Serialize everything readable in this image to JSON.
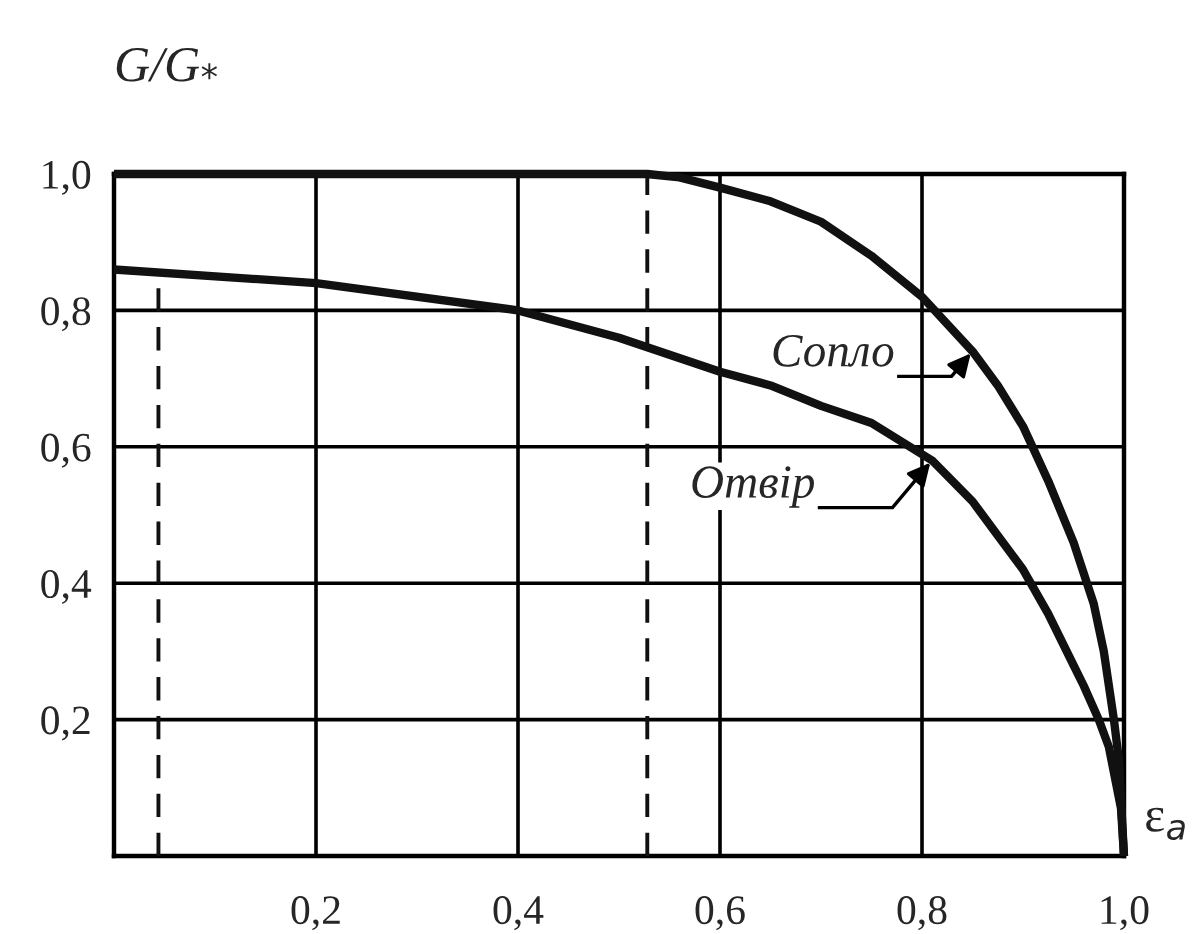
{
  "chart_data": {
    "type": "line",
    "xlabel": "ε$_{a}$",
    "ylabel": "G/G$_{*}$",
    "xlim": [
      0,
      1.0
    ],
    "ylim": [
      0,
      1.0
    ],
    "xticks": [
      {
        "value": 0.2,
        "label": "0,2"
      },
      {
        "value": 0.4,
        "label": "0,4"
      },
      {
        "value": 0.6,
        "label": "0,6"
      },
      {
        "value": 0.8,
        "label": "0,8"
      },
      {
        "value": 1.0,
        "label": "1,0"
      }
    ],
    "yticks": [
      {
        "value": 0.2,
        "label": "0,2"
      },
      {
        "value": 0.4,
        "label": "0,4"
      },
      {
        "value": 0.6,
        "label": "0,6"
      },
      {
        "value": 0.8,
        "label": "0,8"
      },
      {
        "value": 1.0,
        "label": "1,0"
      }
    ],
    "grid": true,
    "marker": "none",
    "series": [
      {
        "color": "#111111",
        "line_style": "solid",
        "x": [
          0,
          0.2,
          0.4,
          0.528,
          0.56,
          0.6,
          0.65,
          0.7,
          0.75,
          0.8,
          0.85,
          0.875,
          0.9,
          0.925,
          0.95,
          0.97,
          0.98,
          0.99,
          0.995,
          1.0
        ],
        "values": [
          1.0,
          1.0,
          1.0,
          1.0,
          0.995,
          0.98,
          0.96,
          0.93,
          0.88,
          0.82,
          0.74,
          0.69,
          0.63,
          0.55,
          0.46,
          0.37,
          0.3,
          0.2,
          0.14,
          0
        ]
      },
      {
        "color": "#111111",
        "line_style": "solid",
        "x": [
          0,
          0.2,
          0.4,
          0.5,
          0.6,
          0.65,
          0.7,
          0.75,
          0.81,
          0.85,
          0.875,
          0.9,
          0.925,
          0.95,
          0.96,
          0.975,
          0.985,
          0.997,
          1.0
        ],
        "values": [
          0.86,
          0.84,
          0.8,
          0.76,
          0.71,
          0.69,
          0.66,
          0.635,
          0.58,
          0.52,
          0.47,
          0.42,
          0.355,
          0.28,
          0.25,
          0.2,
          0.16,
          0.07,
          0
        ]
      },
      {
        "color": "#111111",
        "line_style": "dashed",
        "x": [
          0.528,
          0.528
        ],
        "values": [
          0,
          1.0
        ]
      },
      {
        "color": "#111111",
        "line_style": "dashed",
        "x": [
          0.044,
          0.044
        ],
        "values": [
          0,
          0.857
        ]
      }
    ],
    "annotations": [
      {
        "text": "Сопло",
        "x": 0.85,
        "y": 0.74
      },
      {
        "text": "Отвір",
        "x": 0.81,
        "y": 0.58
      }
    ]
  }
}
